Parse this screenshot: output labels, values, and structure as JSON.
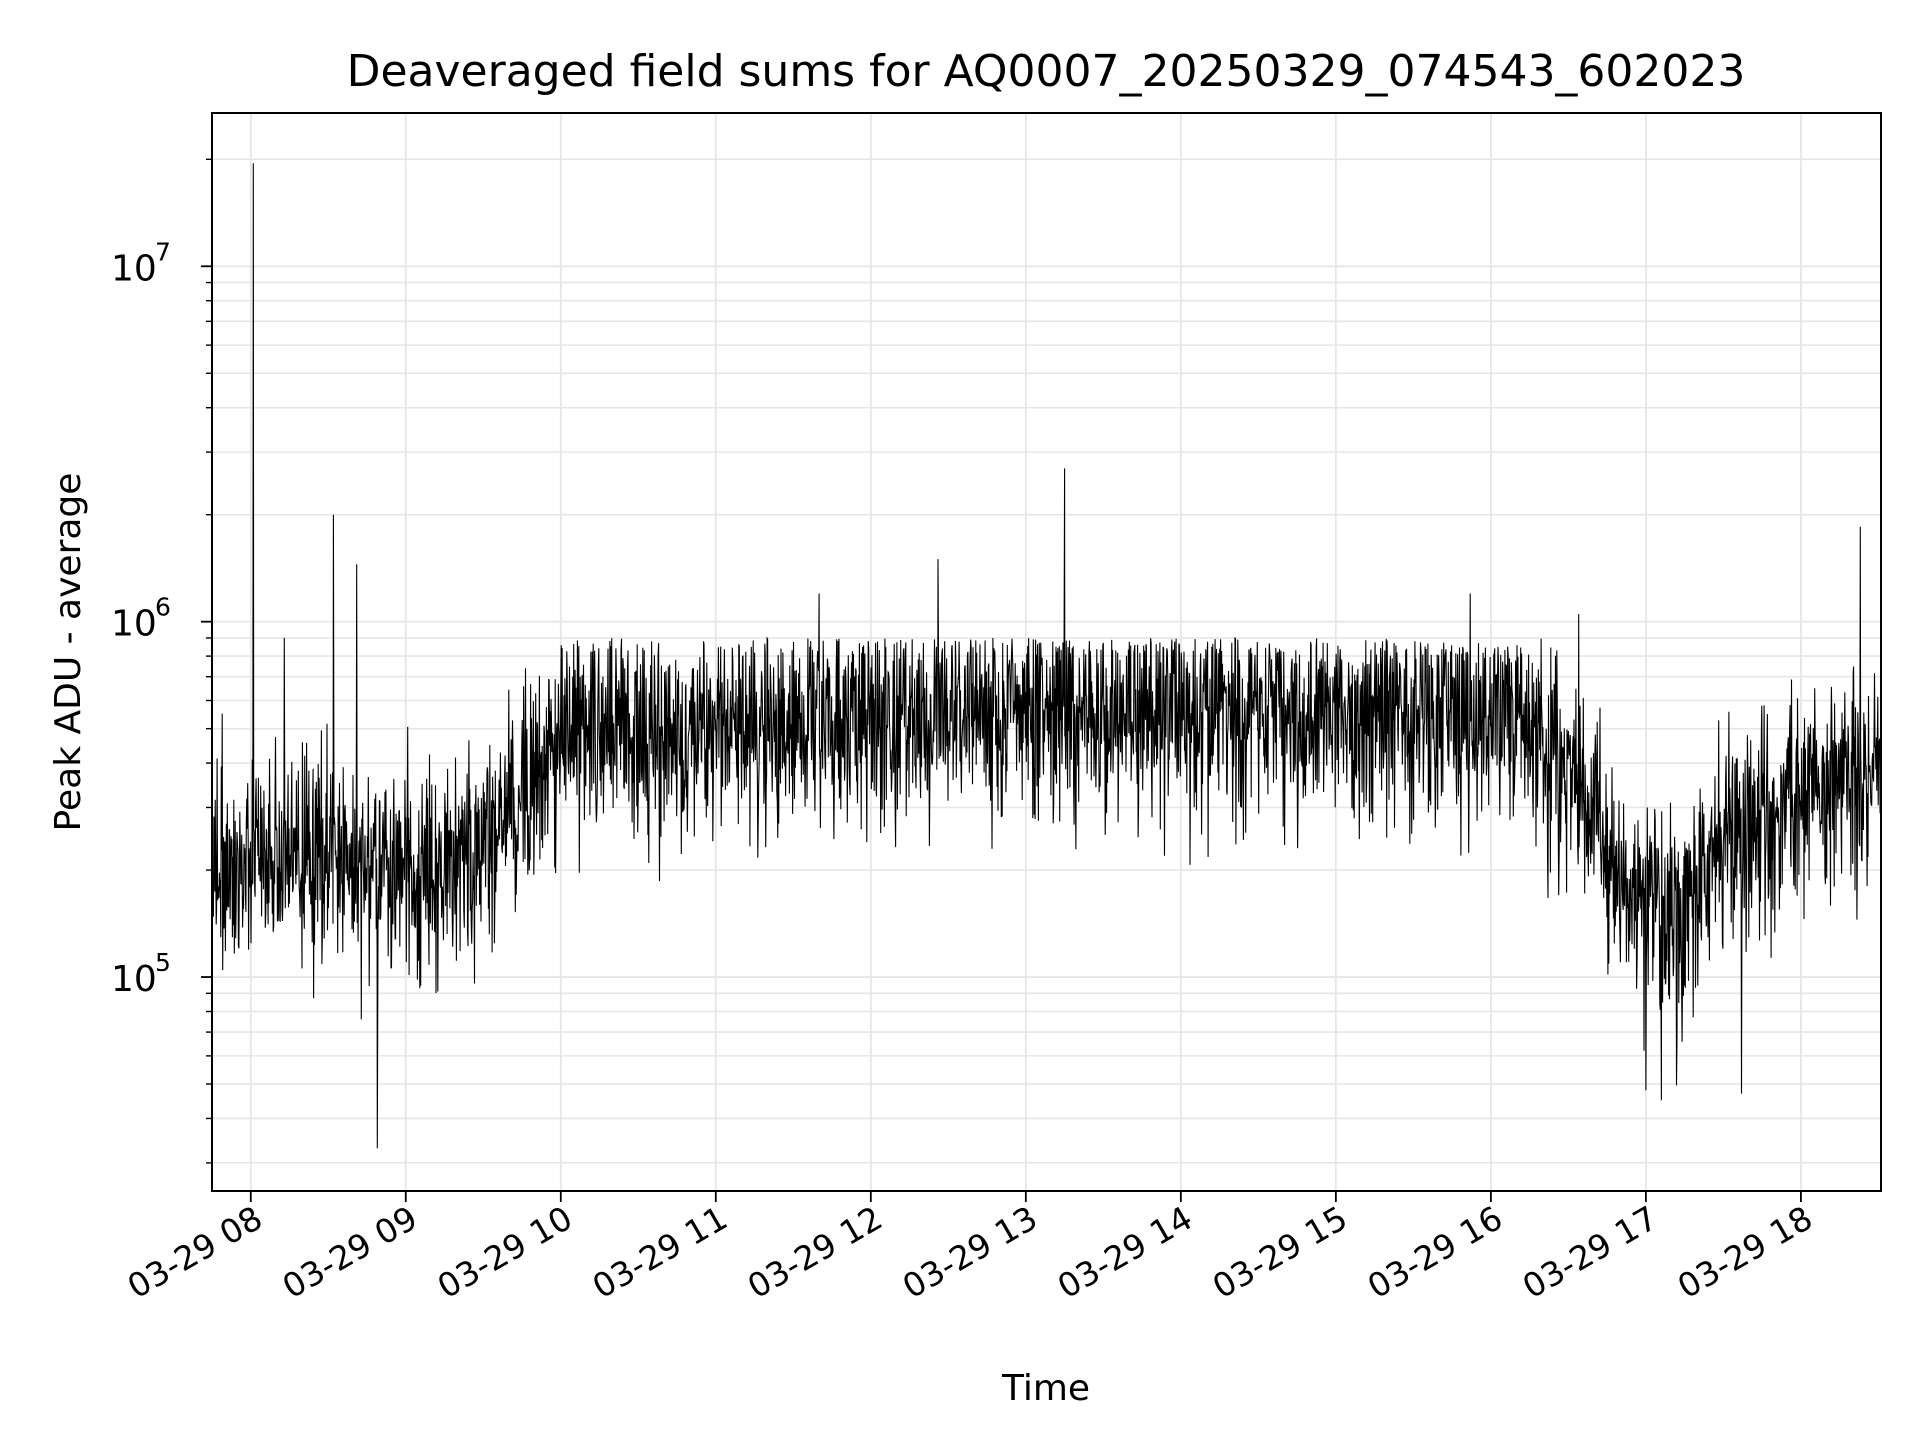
{
  "chart_data": {
    "type": "line",
    "title": "Deaveraged field sums for AQ0007_20250329_074543_602023",
    "xlabel": "Time",
    "ylabel": "Peak ADU - average",
    "yscale": "log",
    "xlim": [
      "2025-03-29 07:45",
      "2025-03-29 18:31"
    ],
    "ylim": [
      25000,
      27000000
    ],
    "grid": true,
    "color": "#000000",
    "grid_color": "#e6e6e6",
    "xticks": [
      "03-29 08",
      "03-29 09",
      "03-29 10",
      "03-29 11",
      "03-29 12",
      "03-29 13",
      "03-29 14",
      "03-29 15",
      "03-29 16",
      "03-29 17",
      "03-29 18"
    ],
    "yticks": [
      {
        "base": "10",
        "exp": "5",
        "value": 100000
      },
      {
        "base": "10",
        "exp": "6",
        "value": 1000000
      },
      {
        "base": "10",
        "exp": "7",
        "value": 10000000
      }
    ],
    "trend": {
      "x": [
        "2025-03-29 07:45",
        "2025-03-29 08:30",
        "2025-03-29 09:15",
        "2025-03-29 09:40",
        "2025-03-29 10:00",
        "2025-03-29 11:00",
        "2025-03-29 12:00",
        "2025-03-29 13:00",
        "2025-03-29 14:00",
        "2025-03-29 15:00",
        "2025-03-29 16:00",
        "2025-03-29 16:20",
        "2025-03-29 16:50",
        "2025-03-29 17:10",
        "2025-03-29 17:30",
        "2025-03-29 18:00",
        "2025-03-29 18:31"
      ],
      "y": [
        200000,
        220000,
        180000,
        280000,
        480000,
        500000,
        520000,
        560000,
        540000,
        560000,
        560000,
        460000,
        200000,
        140000,
        250000,
        330000,
        350000
      ]
    },
    "spikes": [
      {
        "x": "2025-03-29 08:01",
        "y": 19500000
      },
      {
        "x": "2025-03-29 08:32",
        "y": 2000000
      },
      {
        "x": "2025-03-29 08:41",
        "y": 1450000
      },
      {
        "x": "2025-03-29 08:49",
        "y": 33000
      },
      {
        "x": "2025-03-29 08:13",
        "y": 900000
      },
      {
        "x": "2025-03-29 12:26",
        "y": 1500000
      },
      {
        "x": "2025-03-29 13:15",
        "y": 2700000
      },
      {
        "x": "2025-03-29 18:23",
        "y": 1850000
      },
      {
        "x": "2025-03-29 17:00",
        "y": 48000
      },
      {
        "x": "2025-03-29 17:06",
        "y": 45000
      },
      {
        "x": "2025-03-29 17:37",
        "y": 47000
      },
      {
        "x": "2025-03-29 15:52",
        "y": 1200000
      },
      {
        "x": "2025-03-29 16:34",
        "y": 1050000
      },
      {
        "x": "2025-03-29 11:40",
        "y": 1200000
      }
    ]
  }
}
